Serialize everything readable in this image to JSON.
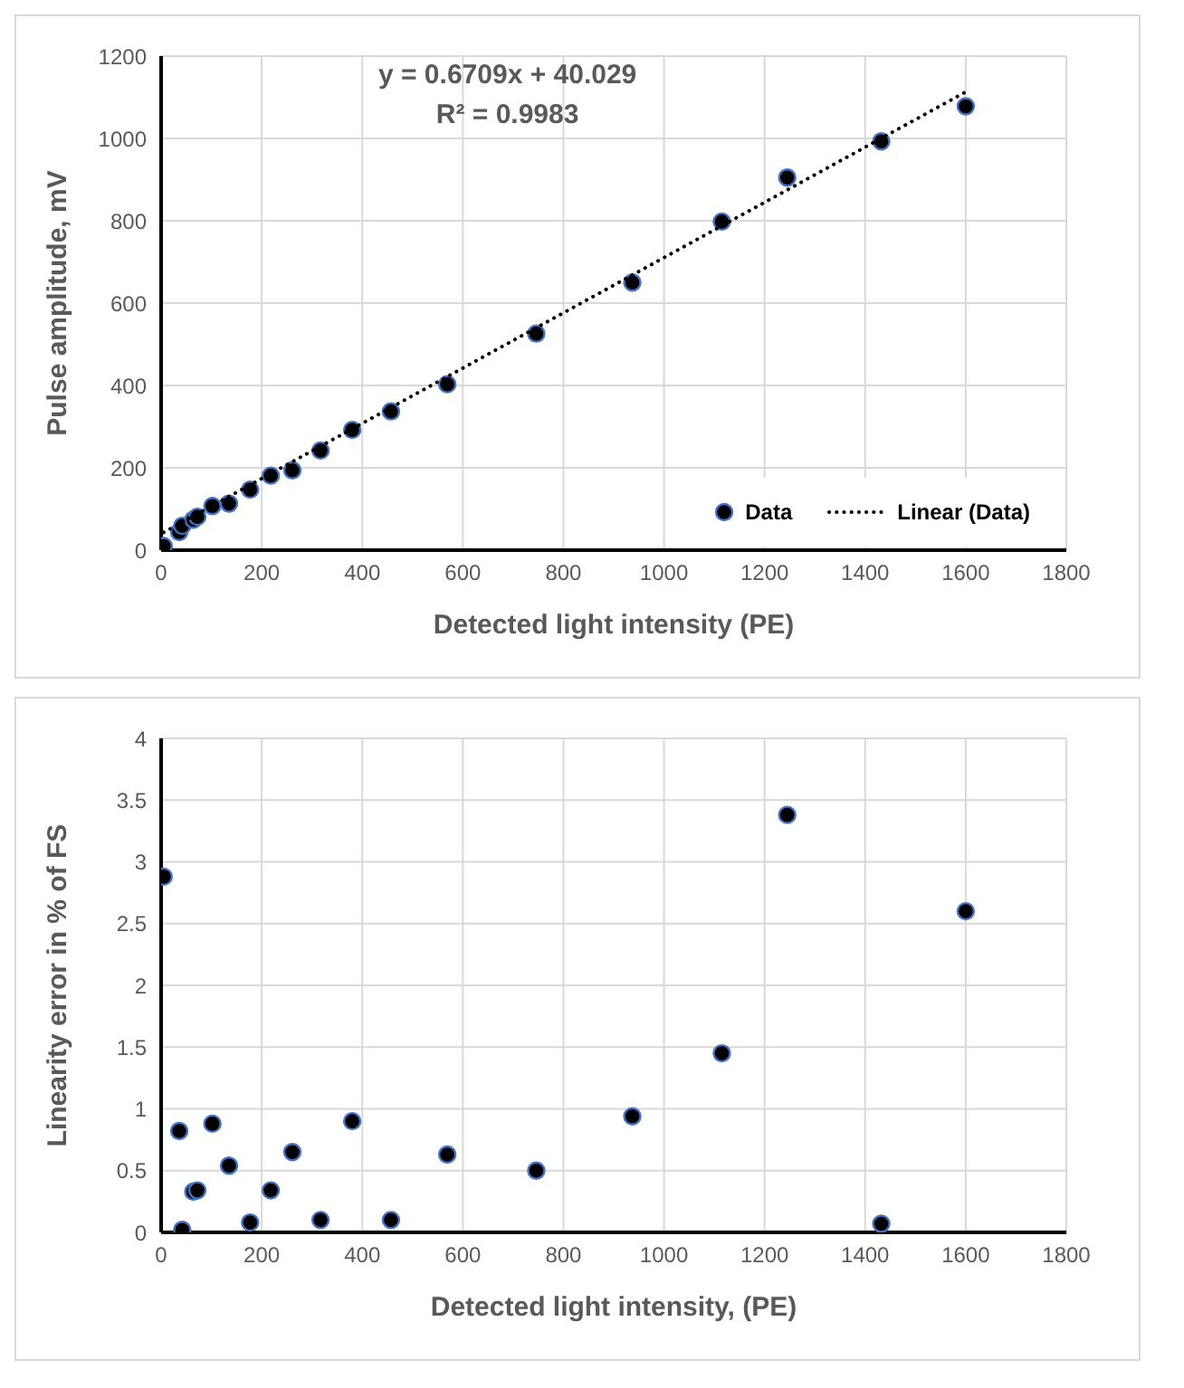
{
  "chart_data": [
    {
      "type": "scatter",
      "xlabel": "Detected light intensity (PE)",
      "ylabel": "Pulse amplitude, mV",
      "annotations": [
        "y = 0.6709x + 40.029",
        "R² = 0.9983"
      ],
      "series": [
        {
          "name": "Data",
          "color": "#000000",
          "marker": "circle",
          "x": [
            5,
            36,
            42,
            64,
            72,
            102,
            135,
            177,
            218,
            261,
            317,
            380,
            457,
            569,
            746,
            937,
            1115,
            1245,
            1432,
            1600
          ],
          "values": [
            10,
            44,
            59,
            74,
            81,
            107,
            113,
            147,
            181,
            194,
            242,
            292,
            337,
            403,
            526,
            650,
            798,
            905,
            993,
            1078
          ]
        },
        {
          "name": "Linear (Data)",
          "type": "line",
          "color": "#000000",
          "line_style": "dotted",
          "marker": "none",
          "x": [
            5,
            1600
          ],
          "values": [
            43,
            1113
          ]
        }
      ],
      "xlim": [
        0,
        1800
      ],
      "xticks": [
        0,
        200,
        400,
        600,
        800,
        1000,
        1200,
        1400,
        1600,
        1800
      ],
      "ylim": [
        0,
        1200
      ],
      "yticks": [
        0,
        200,
        400,
        600,
        800,
        1000,
        1200
      ],
      "grid": true,
      "legend": "bottom right"
    },
    {
      "type": "scatter",
      "xlabel": "Detected light intensity, (PE)",
      "ylabel": "Linearity error in % of FS",
      "series": [
        {
          "color": "#000000",
          "marker": "circle",
          "x": [
            5,
            36,
            42,
            64,
            72,
            102,
            135,
            177,
            218,
            261,
            317,
            380,
            457,
            569,
            746,
            937,
            1115,
            1245,
            1432,
            1600
          ],
          "values": [
            2.88,
            0.82,
            0.02,
            0.33,
            0.34,
            0.88,
            0.54,
            0.08,
            0.34,
            0.65,
            0.1,
            0.9,
            0.1,
            0.63,
            0.5,
            0.94,
            1.45,
            3.38,
            0.07,
            2.6
          ]
        }
      ],
      "xlim": [
        0,
        1800
      ],
      "xticks": [
        0,
        200,
        400,
        600,
        800,
        1000,
        1200,
        1400,
        1600,
        1800
      ],
      "ylim": [
        0,
        4
      ],
      "yticks": [
        0,
        0.5,
        1,
        1.5,
        2,
        2.5,
        3,
        3.5,
        4
      ],
      "grid": true,
      "legend": false
    }
  ]
}
